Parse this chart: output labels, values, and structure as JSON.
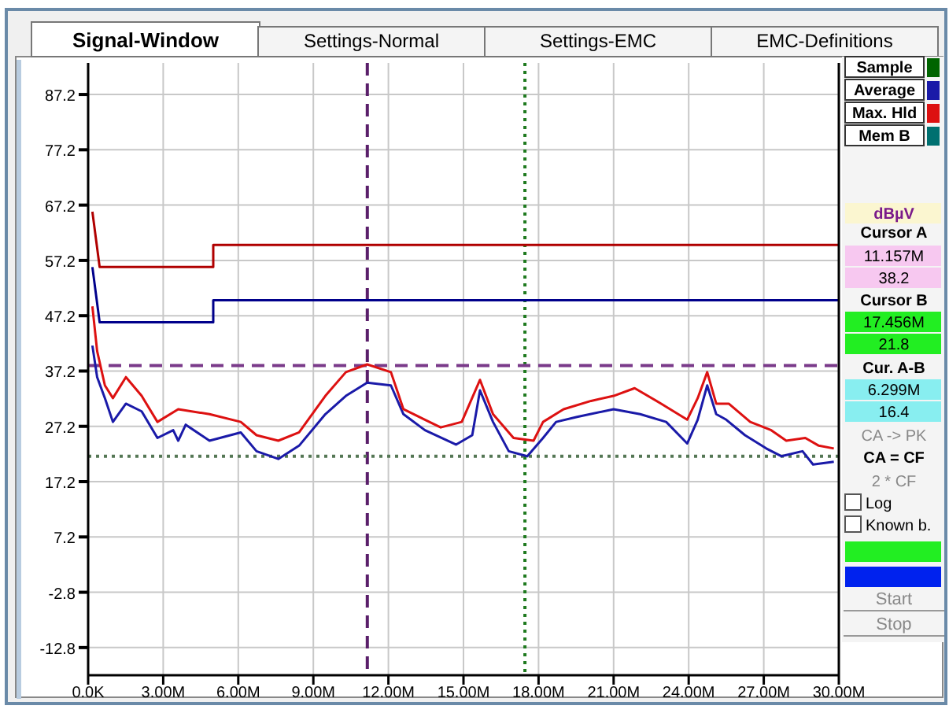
{
  "chart_data": {
    "type": "line",
    "ylabel": "dBµV",
    "xlim": [
      0,
      30
    ],
    "ylim": [
      -17.8,
      92.9
    ],
    "xticks": [
      {
        "value": 0,
        "label": "0.0K"
      },
      {
        "value": 3,
        "label": "3.00M"
      },
      {
        "value": 6,
        "label": "6.00M"
      },
      {
        "value": 9,
        "label": "9.00M"
      },
      {
        "value": 12,
        "label": "12.00M"
      },
      {
        "value": 15,
        "label": "15.00M"
      },
      {
        "value": 18,
        "label": "18.00M"
      },
      {
        "value": 21,
        "label": "21.00M"
      },
      {
        "value": 24,
        "label": "24.00M"
      },
      {
        "value": 27,
        "label": "27.00M"
      },
      {
        "value": 30,
        "label": "30.00M"
      }
    ],
    "yticks": [
      -12.8,
      -2.8,
      7.2,
      17.2,
      27.2,
      37.2,
      47.2,
      57.2,
      67.2,
      77.2,
      87.2
    ],
    "grid": true,
    "legend": "top right",
    "line_style": "solid",
    "marker": "none",
    "series": [
      {
        "name": "Sample",
        "color": "#006400"
      },
      {
        "name": "Average",
        "color": "#1a1aa8",
        "x": [
          0.17,
          0.36,
          0.67,
          0.99,
          1.51,
          2.14,
          2.77,
          3.4,
          3.6,
          3.9,
          4.85,
          6.1,
          6.73,
          7.6,
          8.43,
          9.48,
          10.3,
          11.15,
          12.1,
          12.6,
          13.46,
          14.7,
          15.35,
          15.66,
          16.18,
          16.81,
          17.55,
          18.18,
          18.7,
          19.54,
          21.0,
          22.06,
          23.1,
          23.94,
          24.36,
          24.74,
          25.1,
          25.5,
          26.25,
          27.1,
          27.7,
          28.55,
          28.97,
          29.8
        ],
        "values": [
          41.8,
          36.1,
          32.3,
          28.0,
          31.3,
          29.9,
          25.1,
          26.5,
          24.6,
          27.5,
          24.6,
          26.1,
          22.7,
          21.3,
          23.7,
          29.4,
          32.7,
          35.1,
          34.6,
          29.4,
          26.5,
          23.9,
          25.6,
          33.7,
          28.0,
          22.7,
          21.8,
          25.1,
          28.0,
          28.9,
          30.3,
          29.4,
          28.0,
          24.1,
          28.4,
          34.6,
          29.4,
          28.4,
          25.6,
          23.2,
          21.8,
          22.7,
          20.3,
          20.8
        ]
      },
      {
        "name": "Max. Hld",
        "color": "#dd1111",
        "x": [
          0.17,
          0.36,
          0.67,
          0.99,
          1.51,
          2.14,
          2.77,
          3.6,
          4.85,
          6.1,
          6.73,
          7.6,
          8.43,
          9.48,
          10.3,
          11.15,
          12.1,
          12.6,
          13.46,
          14.09,
          14.93,
          15.66,
          16.18,
          17.0,
          17.8,
          18.18,
          19.0,
          20.1,
          21.0,
          21.84,
          22.9,
          23.94,
          24.36,
          24.74,
          25.1,
          25.6,
          26.46,
          27.3,
          27.9,
          28.66,
          29.2,
          29.8
        ],
        "values": [
          48.9,
          40.8,
          34.6,
          32.3,
          36.1,
          32.7,
          28.0,
          30.3,
          29.4,
          28.0,
          25.6,
          24.6,
          26.1,
          32.7,
          37.0,
          38.4,
          37.0,
          30.3,
          28.4,
          27.0,
          28.0,
          35.6,
          29.4,
          25.1,
          24.6,
          28.0,
          30.3,
          31.8,
          32.7,
          34.1,
          31.3,
          28.4,
          32.3,
          37.0,
          31.3,
          31.3,
          28.0,
          26.5,
          24.6,
          25.1,
          23.7,
          23.2
        ]
      },
      {
        "name": "Mem B",
        "color": "#007070"
      },
      {
        "color": "#b00000",
        "x": [
          0.17,
          0.46,
          5,
          5,
          30
        ],
        "values": [
          66,
          56,
          56,
          60,
          60
        ]
      },
      {
        "color": "#00008b",
        "x": [
          0.17,
          0.46,
          5,
          5,
          30
        ],
        "values": [
          56,
          46,
          46,
          50,
          50
        ]
      }
    ],
    "ref_lines": [
      {
        "axis": "x",
        "value": 11.157,
        "color": "#5a1f6a",
        "line_style": "dashed"
      },
      {
        "axis": "x",
        "value": 17.456,
        "color": "#1f7a1f",
        "line_style": "dotted"
      },
      {
        "axis": "y",
        "value": 38.2,
        "color": "#7a3a8a",
        "line_style": "dashed"
      },
      {
        "axis": "y",
        "value": 21.8,
        "color": "#557755",
        "line_style": "dotted"
      }
    ],
    "annotations": [
      "Signal-Window",
      "Settings-Normal",
      "Settings-EMC",
      "EMC-Definitions",
      "Cursor A",
      "11.157M",
      "38.2",
      "Cursor B",
      "17.456M",
      "21.8",
      "Cur. A-B",
      "6.299M",
      "16.4",
      "CA -> PK",
      "CA = CF",
      "2 * CF",
      "Log",
      "Known b.",
      "Start",
      "Stop"
    ]
  }
}
